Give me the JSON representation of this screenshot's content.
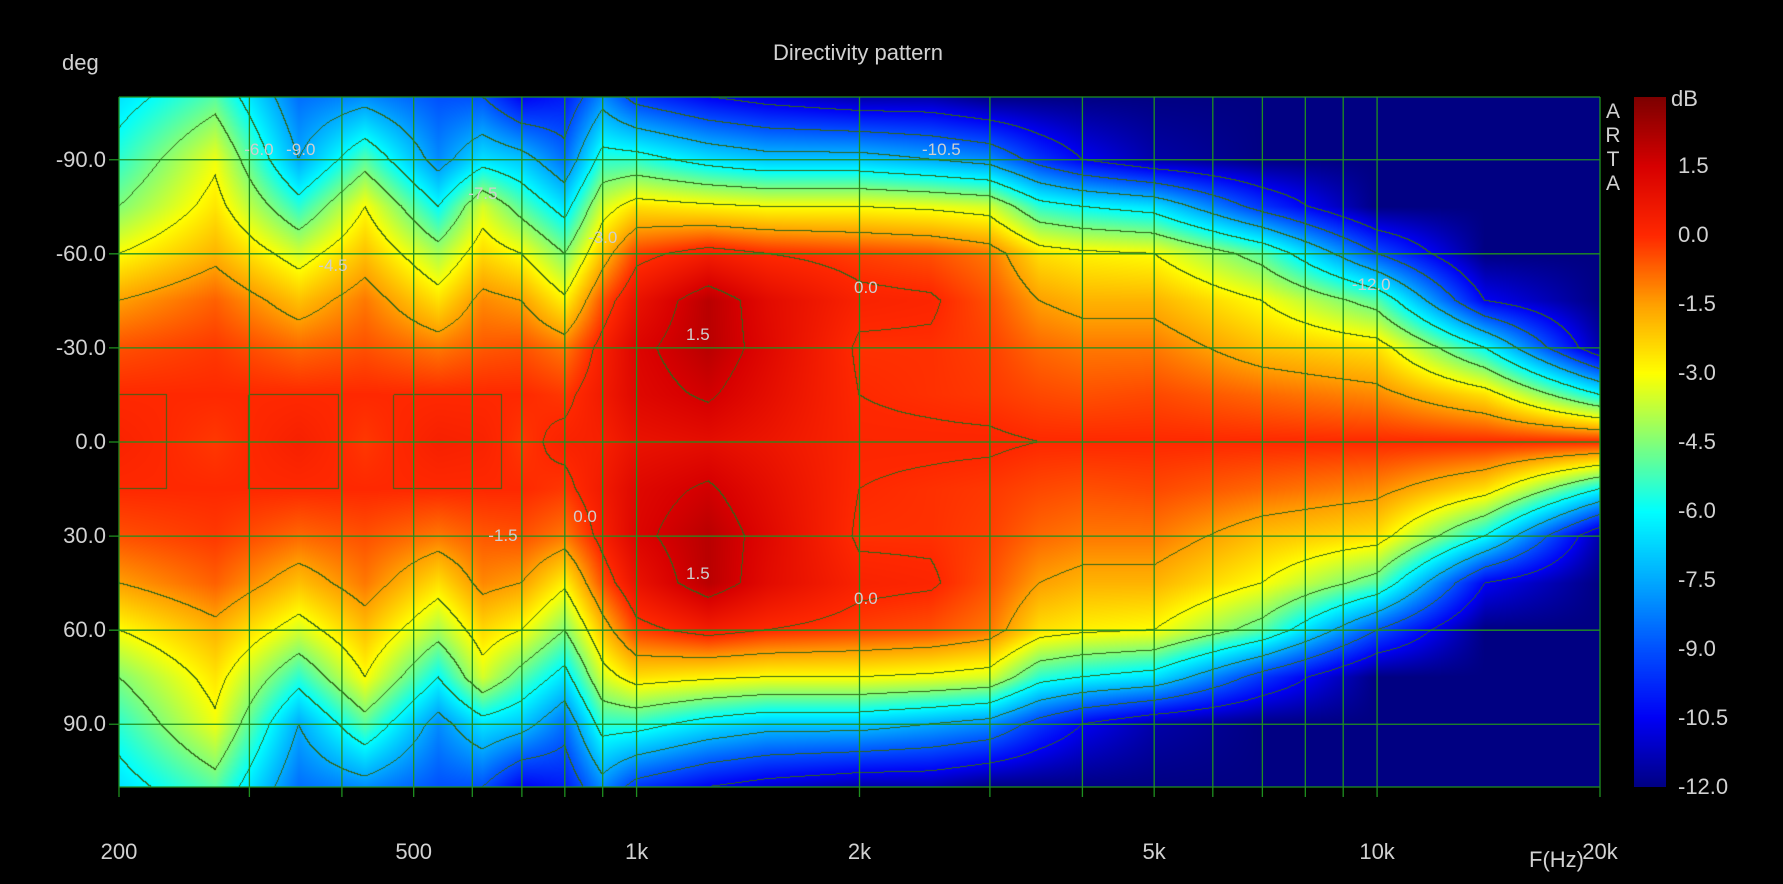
{
  "chart_data": {
    "type": "heatmap",
    "title": "Directivity pattern",
    "xlabel": "F(Hz)",
    "ylabel": "deg",
    "colorbar_label": "dB",
    "watermark": "ARTA",
    "xscale": "log",
    "xlim": [
      200,
      20000
    ],
    "ylim": [
      -110,
      110
    ],
    "zlim": [
      -12,
      3
    ],
    "contour_step": 1.5,
    "grid": true,
    "x_ticks": [
      {
        "v": 200,
        "label": "200"
      },
      {
        "v": 500,
        "label": "500"
      },
      {
        "v": 1000,
        "label": "1k"
      },
      {
        "v": 2000,
        "label": "2k"
      },
      {
        "v": 5000,
        "label": "5k"
      },
      {
        "v": 10000,
        "label": "10k"
      },
      {
        "v": 20000,
        "label": "20k"
      }
    ],
    "y_ticks": [
      {
        "v": -90,
        "label": "-90.0"
      },
      {
        "v": -60,
        "label": "-60.0"
      },
      {
        "v": -30,
        "label": "-30.0"
      },
      {
        "v": 0,
        "label": "0.0"
      },
      {
        "v": 30,
        "label": "30.0"
      },
      {
        "v": 60,
        "label": "60.0"
      },
      {
        "v": 90,
        "label": "90.0"
      }
    ],
    "colorbar_ticks": [
      {
        "v": 1.5,
        "label": "1.5"
      },
      {
        "v": 0,
        "label": "0.0"
      },
      {
        "v": -1.5,
        "label": "-1.5"
      },
      {
        "v": -3,
        "label": "-3.0"
      },
      {
        "v": -4.5,
        "label": "-4.5"
      },
      {
        "v": -6,
        "label": "-6.0"
      },
      {
        "v": -7.5,
        "label": "-7.5"
      },
      {
        "v": -9,
        "label": "-9.0"
      },
      {
        "v": -10.5,
        "label": "-10.5"
      },
      {
        "v": -12,
        "label": "-12.0"
      }
    ],
    "symmetric_about_zero": true,
    "angles": [
      0,
      15,
      30,
      45,
      60,
      75,
      90,
      110
    ],
    "frequencies": [
      200,
      270,
      350,
      430,
      540,
      620,
      700,
      800,
      900,
      1000,
      1250,
      1500,
      2000,
      2500,
      3000,
      3500,
      4000,
      5000,
      7000,
      10000,
      14000,
      20000
    ],
    "values_db": [
      [
        0.2,
        0.0,
        -0.5,
        -1.5,
        -3.0,
        -4.5,
        -5.5,
        -6.5
      ],
      [
        -0.2,
        0.0,
        -0.2,
        -0.7,
        -1.8,
        -2.6,
        -3.2,
        -5.0
      ],
      [
        0.3,
        0.0,
        -0.8,
        -2.0,
        -3.5,
        -5.5,
        -7.5,
        -8.5
      ],
      [
        -0.2,
        0.0,
        -0.5,
        -1.0,
        -2.0,
        -3.0,
        -5.0,
        -8.0
      ],
      [
        0.3,
        0.0,
        -1.0,
        -2.5,
        -4.0,
        -6.0,
        -8.0,
        -9.0
      ],
      [
        0.2,
        0.0,
        -0.6,
        -1.2,
        -2.4,
        -3.5,
        -6.5,
        -9.0
      ],
      [
        -0.2,
        0.0,
        -0.5,
        -1.5,
        -3.0,
        -5.0,
        -7.0,
        -10.5
      ],
      [
        0.2,
        -0.2,
        -1.0,
        -2.8,
        -4.5,
        -6.5,
        -8.5,
        -10.0
      ],
      [
        0.3,
        0.5,
        0.3,
        -0.5,
        -2.0,
        -3.5,
        -5.5,
        -8.0
      ],
      [
        0.8,
        1.2,
        1.3,
        0.8,
        -0.3,
        -2.5,
        -5.5,
        -9.5
      ],
      [
        1.0,
        1.6,
        2.0,
        2.0,
        0.4,
        -2.8,
        -6.5,
        -10.5
      ],
      [
        0.7,
        1.0,
        1.2,
        1.1,
        0.0,
        -3.0,
        -7.0,
        -11.0
      ],
      [
        0.1,
        0.0,
        -0.1,
        0.2,
        -0.3,
        -3.0,
        -7.0,
        -11.5
      ],
      [
        0.1,
        -0.1,
        -0.1,
        0.1,
        -0.5,
        -3.2,
        -7.5,
        -11.5
      ],
      [
        0.1,
        -0.2,
        -0.3,
        -0.5,
        -1.0,
        -3.5,
        -8.0,
        -12.0
      ],
      [
        0.0,
        -0.4,
        -0.8,
        -1.5,
        -2.5,
        -5.5,
        -9.5,
        -12.0
      ],
      [
        0.0,
        -0.5,
        -1.0,
        -1.8,
        -2.8,
        -6.0,
        -10.5,
        -12.0
      ],
      [
        0.0,
        -0.4,
        -1.0,
        -1.8,
        -3.0,
        -6.5,
        -11.5,
        -12.0
      ],
      [
        0.0,
        -0.8,
        -2.0,
        -3.0,
        -5.0,
        -9.5,
        -12.0,
        -12.0
      ],
      [
        0.0,
        -1.2,
        -2.5,
        -5.0,
        -9.0,
        -12.0,
        -12.0,
        -12.0
      ],
      [
        0.0,
        -2.5,
        -6.0,
        -10.5,
        -12.0,
        -12.0,
        -12.0,
        -12.0
      ],
      [
        0.0,
        -6.0,
        -11.5,
        -12.0,
        -12.0,
        -12.0,
        -12.0,
        -12.0
      ]
    ],
    "contour_labels": [
      {
        "text": "-6.0",
        "f": 309,
        "deg": -93
      },
      {
        "text": "-9.0",
        "f": 352,
        "deg": -93
      },
      {
        "text": "-7.5",
        "f": 620,
        "deg": -79
      },
      {
        "text": "-4.5",
        "f": 389,
        "deg": -56
      },
      {
        "text": "-3.0",
        "f": 900,
        "deg": -65
      },
      {
        "text": "-10.5",
        "f": 2580,
        "deg": -93
      },
      {
        "text": "0.0",
        "f": 2040,
        "deg": -49
      },
      {
        "text": "1.5",
        "f": 1210,
        "deg": -34
      },
      {
        "text": "-12.0",
        "f": 9820,
        "deg": -50
      },
      {
        "text": "-1.5",
        "f": 660,
        "deg": 30
      },
      {
        "text": "0.0",
        "f": 852,
        "deg": 24
      },
      {
        "text": "1.5",
        "f": 1210,
        "deg": 42
      },
      {
        "text": "0.0",
        "f": 2040,
        "deg": 50
      }
    ],
    "colors": {
      "grid": "#1f8f1f",
      "contour": "#3d6a1c",
      "text": "#d2d2d2",
      "background": "#000000"
    }
  }
}
